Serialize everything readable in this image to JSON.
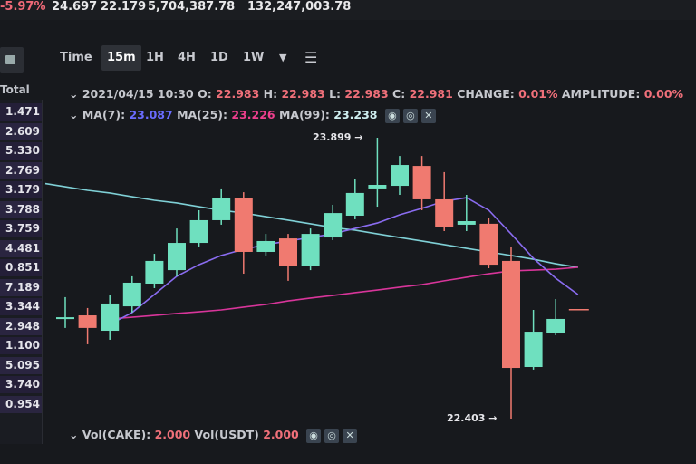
{
  "ticker": {
    "change_pct": "-5.97%",
    "high": "24.697",
    "low": "22.179",
    "vol_base": "5,704,387.78",
    "vol_quote": "132,247,003.78"
  },
  "left_table": {
    "header": "Total",
    "values": [
      "1.471",
      "2.609",
      "5.330",
      "2.769",
      "3.179",
      "3.788",
      "3.759",
      "4.481",
      "0.851",
      "7.189",
      "3.344",
      "2.948",
      "1.100",
      "5.095",
      "3.740",
      "0.954"
    ]
  },
  "toolbar": {
    "icon": "calculator-icon",
    "intervals": [
      "Time",
      "15m",
      "1H",
      "4H",
      "1D",
      "1W"
    ],
    "active_interval": "15m",
    "more_icon": "triangle-down-icon",
    "settings_icon": "sliders-icon"
  },
  "ohlc_line": {
    "date": "2021/04/15 10:30",
    "o_label": "O:",
    "o": "22.983",
    "h_label": "H:",
    "h": "22.983",
    "l_label": "L:",
    "l": "22.983",
    "c_label": "C:",
    "c": "22.981",
    "change_label": "CHANGE:",
    "change": "0.01%",
    "amplitude_label": "AMPLITUDE:",
    "amplitude": "0.00%"
  },
  "ma_line": {
    "ma7_label": "MA(7):",
    "ma7": "23.087",
    "ma25_label": "MA(25):",
    "ma25": "23.226",
    "ma99_label": "MA(99):",
    "ma99": "23.238"
  },
  "vol_line": {
    "cake_label": "Vol(CAKE):",
    "cake": "2.000",
    "usdt_label": "Vol(USDT)",
    "usdt": "2.000"
  },
  "colors": {
    "up": "#6fe0bf",
    "down": "#f07a70",
    "ma7": "#8a6cf0",
    "ma25": "#d8359a",
    "ma99": "#7fd0d6"
  },
  "chart_data": {
    "type": "candlestick",
    "annotations": [
      {
        "text": "23.899",
        "kind": "max"
      },
      {
        "text": "22.403",
        "kind": "min"
      }
    ],
    "candles": [
      {
        "o": 22.934,
        "h": 23.05,
        "l": 22.886,
        "c": 22.943
      },
      {
        "o": 22.953,
        "h": 22.992,
        "l": 22.799,
        "c": 22.886
      },
      {
        "o": 22.871,
        "h": 23.064,
        "l": 22.823,
        "c": 23.016
      },
      {
        "o": 23.001,
        "h": 23.161,
        "l": 22.968,
        "c": 23.127
      },
      {
        "o": 23.122,
        "h": 23.281,
        "l": 23.098,
        "c": 23.243
      },
      {
        "o": 23.194,
        "h": 23.416,
        "l": 23.161,
        "c": 23.339
      },
      {
        "o": 23.339,
        "h": 23.513,
        "l": 23.32,
        "c": 23.46
      },
      {
        "o": 23.46,
        "h": 23.629,
        "l": 23.436,
        "c": 23.58
      },
      {
        "o": 23.58,
        "h": 23.609,
        "l": 23.175,
        "c": 23.291
      },
      {
        "o": 23.291,
        "h": 23.387,
        "l": 23.272,
        "c": 23.349
      },
      {
        "o": 23.363,
        "h": 23.387,
        "l": 23.137,
        "c": 23.214
      },
      {
        "o": 23.214,
        "h": 23.416,
        "l": 23.194,
        "c": 23.387
      },
      {
        "o": 23.368,
        "h": 23.542,
        "l": 23.354,
        "c": 23.498
      },
      {
        "o": 23.484,
        "h": 23.677,
        "l": 23.465,
        "c": 23.605
      },
      {
        "o": 23.629,
        "h": 23.899,
        "l": 23.532,
        "c": 23.648
      },
      {
        "o": 23.643,
        "h": 23.802,
        "l": 23.595,
        "c": 23.754
      },
      {
        "o": 23.749,
        "h": 23.802,
        "l": 23.513,
        "c": 23.571
      },
      {
        "o": 23.571,
        "h": 23.716,
        "l": 23.402,
        "c": 23.426
      },
      {
        "o": 23.436,
        "h": 23.595,
        "l": 23.402,
        "c": 23.455
      },
      {
        "o": 23.441,
        "h": 23.474,
        "l": 23.204,
        "c": 23.223
      },
      {
        "o": 23.243,
        "h": 23.32,
        "l": 22.403,
        "c": 22.673
      },
      {
        "o": 22.678,
        "h": 22.982,
        "l": 22.664,
        "c": 22.866
      },
      {
        "o": 22.857,
        "h": 23.04,
        "l": 22.847,
        "c": 22.934
      },
      {
        "o": 22.983,
        "h": 22.983,
        "l": 22.983,
        "c": 22.981
      }
    ],
    "series": [
      {
        "name": "MA(7)",
        "values": [
          null,
          null,
          22.905,
          22.968,
          23.064,
          23.161,
          23.223,
          23.272,
          23.305,
          23.33,
          23.349,
          23.368,
          23.387,
          23.416,
          23.445,
          23.489,
          23.523,
          23.561,
          23.58,
          23.513,
          23.387,
          23.257,
          23.151,
          23.064
        ]
      },
      {
        "name": "MA(25)",
        "values": [
          null,
          null,
          22.934,
          22.943,
          22.953,
          22.963,
          22.972,
          22.982,
          22.997,
          23.011,
          23.03,
          23.045,
          23.059,
          23.074,
          23.088,
          23.103,
          23.117,
          23.137,
          23.156,
          23.175,
          23.19,
          23.194,
          23.199,
          23.209
        ]
      },
      {
        "name": "MA(99)",
        "values": [
          23.638,
          23.619,
          23.605,
          23.585,
          23.566,
          23.552,
          23.532,
          23.513,
          23.498,
          23.479,
          23.46,
          23.441,
          23.421,
          23.407,
          23.387,
          23.368,
          23.349,
          23.33,
          23.31,
          23.291,
          23.272,
          23.252,
          23.228,
          23.209
        ]
      }
    ]
  }
}
